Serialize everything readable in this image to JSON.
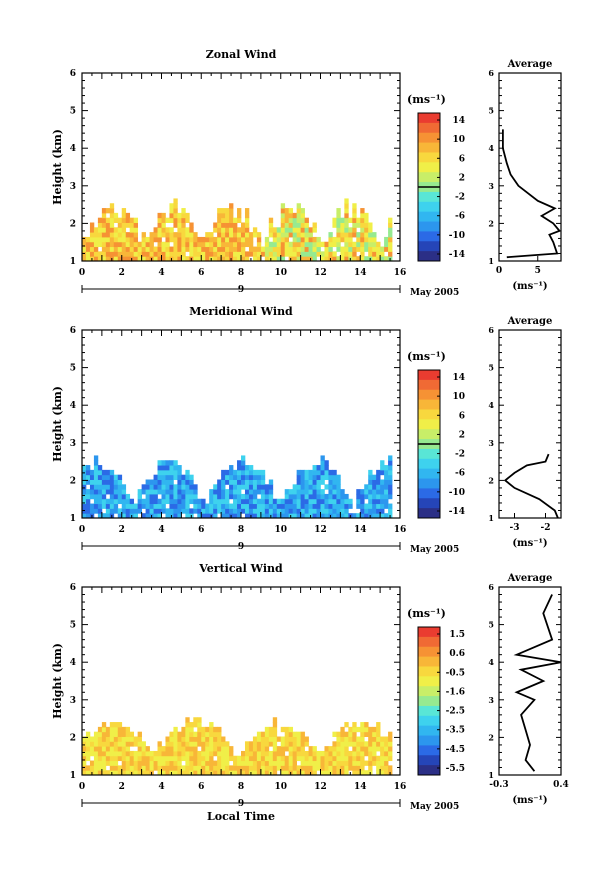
{
  "chart_data": [
    {
      "type": "heatmap",
      "title": "Zonal Wind",
      "ylabel": "Height (km)",
      "xlabel": "",
      "xlim": [
        0,
        16
      ],
      "ylim": [
        1,
        6
      ],
      "x_ticks": [
        "0",
        "2",
        "4",
        "6",
        "8",
        "10",
        "12",
        "14",
        "16"
      ],
      "y_ticks": [
        "1",
        "2",
        "3",
        "4",
        "5",
        "6"
      ],
      "day_label": "9",
      "month_label": "May 2005",
      "colorbar": {
        "unit": "(ms⁻¹)",
        "ticks": [
          "14",
          "10",
          "6",
          "2",
          "-2",
          "-6",
          "-10",
          "-14"
        ],
        "range": [
          -16,
          16
        ]
      },
      "profile": {
        "title": "Average",
        "xlabel": "(ms⁻¹)",
        "x_ticks": [
          "0",
          "5"
        ],
        "xlim": [
          0,
          8
        ],
        "points": [
          [
            1.0,
            1.1
          ],
          [
            7.5,
            1.2
          ],
          [
            7.0,
            1.5
          ],
          [
            6.5,
            1.7
          ],
          [
            7.8,
            1.8
          ],
          [
            7.0,
            2.0
          ],
          [
            5.5,
            2.2
          ],
          [
            7.2,
            2.4
          ],
          [
            5.0,
            2.6
          ],
          [
            2.5,
            3.0
          ],
          [
            1.5,
            3.3
          ],
          [
            1.0,
            3.6
          ],
          [
            0.5,
            4.0
          ],
          [
            0.5,
            4.5
          ]
        ],
        "ylim": [
          1,
          6
        ]
      }
    },
    {
      "type": "heatmap",
      "title": "Meridional Wind",
      "ylabel": "Height (km)",
      "xlabel": "",
      "xlim": [
        0,
        16
      ],
      "ylim": [
        1,
        6
      ],
      "x_ticks": [
        "0",
        "2",
        "4",
        "6",
        "8",
        "10",
        "12",
        "14",
        "16"
      ],
      "y_ticks": [
        "1",
        "2",
        "3",
        "4",
        "5",
        "6"
      ],
      "day_label": "9",
      "month_label": "May 2005",
      "colorbar": {
        "unit": "(ms⁻¹)",
        "ticks": [
          "14",
          "10",
          "6",
          "2",
          "-2",
          "-6",
          "-10",
          "-14"
        ],
        "range": [
          -16,
          16
        ]
      },
      "profile": {
        "title": "Average",
        "xlabel": "(ms⁻¹)",
        "x_ticks": [
          "-3",
          "-2"
        ],
        "xlim": [
          -3.5,
          -1.5
        ],
        "points": [
          [
            -1.6,
            1.0
          ],
          [
            -1.7,
            1.2
          ],
          [
            -2.2,
            1.5
          ],
          [
            -3.0,
            1.8
          ],
          [
            -3.3,
            2.0
          ],
          [
            -3.0,
            2.2
          ],
          [
            -2.6,
            2.4
          ],
          [
            -2.0,
            2.5
          ],
          [
            -1.9,
            2.7
          ]
        ],
        "ylim": [
          1,
          6
        ]
      }
    },
    {
      "type": "heatmap",
      "title": "Vertical Wind",
      "ylabel": "Height (km)",
      "xlabel": "Local Time",
      "xlim": [
        0,
        16
      ],
      "ylim": [
        1,
        6
      ],
      "x_ticks": [
        "0",
        "2",
        "4",
        "6",
        "8",
        "10",
        "12",
        "14",
        "16"
      ],
      "y_ticks": [
        "1",
        "2",
        "3",
        "4",
        "5",
        "6"
      ],
      "day_label": "9",
      "month_label": "May 2005",
      "colorbar": {
        "unit": "(ms⁻¹)",
        "ticks": [
          "1.5",
          "0.6",
          "-0.5",
          "-1.6",
          "-2.5",
          "-3.5",
          "-4.5",
          "-5.5"
        ],
        "range": [
          -6,
          2
        ]
      },
      "profile": {
        "title": "Average",
        "xlabel": "(ms⁻¹)",
        "x_ticks": [
          "-0.3",
          "0.4"
        ],
        "xlim": [
          -0.3,
          0.4
        ],
        "points": [
          [
            0.1,
            1.1
          ],
          [
            0.0,
            1.4
          ],
          [
            0.05,
            1.8
          ],
          [
            0.0,
            2.2
          ],
          [
            -0.05,
            2.6
          ],
          [
            0.1,
            3.0
          ],
          [
            -0.1,
            3.2
          ],
          [
            0.2,
            3.5
          ],
          [
            -0.05,
            3.8
          ],
          [
            0.4,
            4.0
          ],
          [
            -0.1,
            4.2
          ],
          [
            0.3,
            4.6
          ],
          [
            0.2,
            5.3
          ],
          [
            0.3,
            5.8
          ]
        ],
        "ylim": [
          1,
          6
        ]
      }
    }
  ]
}
